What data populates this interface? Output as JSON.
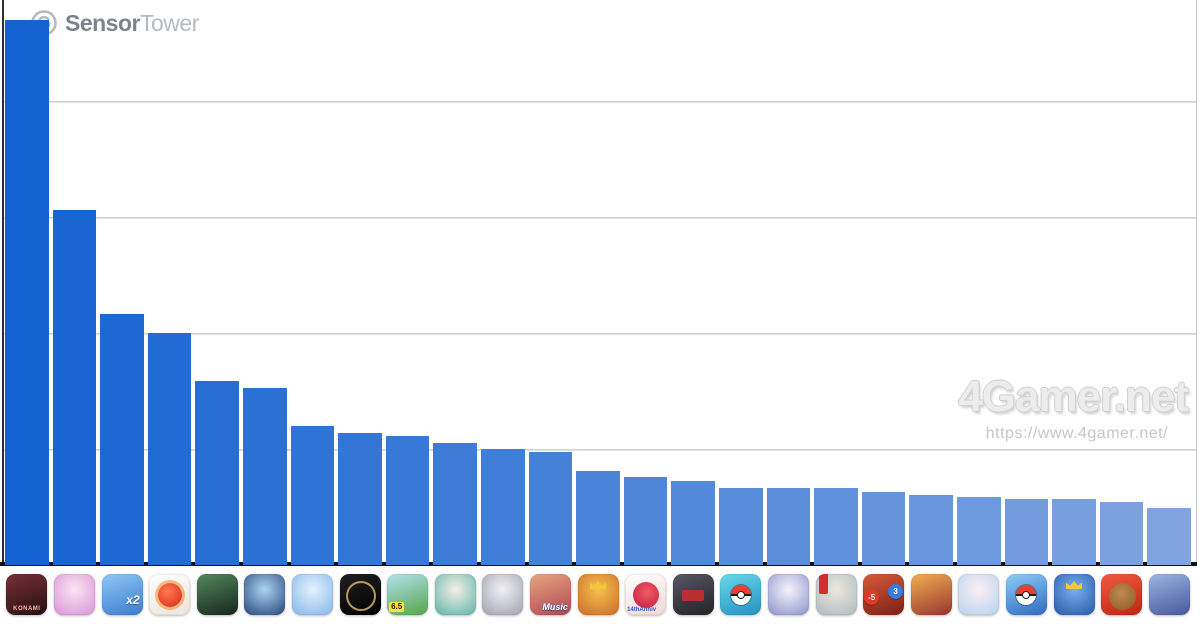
{
  "brand": {
    "name_bold": "Sensor",
    "name_light": "Tower"
  },
  "watermark": {
    "title": "4Gamer.net",
    "url": "https://www.4gamer.net/"
  },
  "chart_data": {
    "type": "bar",
    "title": "",
    "legend": "none",
    "x_axis": {
      "tick_style": "app-icons",
      "labels_visible": false
    },
    "y_axis": {
      "labels_visible": false,
      "gridlines": 4,
      "gridline_unit": 1,
      "ylim": [
        0,
        4.87
      ]
    },
    "bar_color_start": "#1563d2",
    "bar_color_end": "#7fa4e0",
    "categories": [
      "baseball-konami",
      "uma-musume",
      "puzzle-x2",
      "monster-strike",
      "efootball",
      "frozen-city",
      "fantasy-blue",
      "twisted-wonderland",
      "dq-walk",
      "teal-heroine",
      "pale-girl",
      "idol-music",
      "royal-king",
      "puzzle-and-dragons",
      "nobunaga-hadou",
      "pokemon-tcg-pocket",
      "genshin-paimon",
      "anniv-girl",
      "war-gates",
      "pirate-crew",
      "star-rail",
      "pokemon-go",
      "clash-king",
      "toon-bear",
      "mecha-collage"
    ],
    "values": [
      4.7,
      3.06,
      2.16,
      2.0,
      1.59,
      1.53,
      1.2,
      1.14,
      1.11,
      1.05,
      1.0,
      0.97,
      0.81,
      0.76,
      0.72,
      0.66,
      0.66,
      0.66,
      0.63,
      0.6,
      0.59,
      0.57,
      0.57,
      0.54,
      0.49
    ]
  },
  "icon_row": {
    "icons": [
      {
        "name": "baseball-konami",
        "grad": "linear",
        "colors": [
          "#7a3034",
          "#241013"
        ],
        "label": "KONAMI",
        "label_class": "konami"
      },
      {
        "name": "uma-musume",
        "grad": "radial",
        "colors": [
          "#fce4f2",
          "#d892d8"
        ]
      },
      {
        "name": "puzzle-x2",
        "grad": "linear",
        "colors": [
          "#90c8f4",
          "#3b7cd0"
        ],
        "label": "x2",
        "label_class": "x2"
      },
      {
        "name": "monster-strike",
        "grad": "linear",
        "colors": [
          "#ffffff",
          "#ece4da"
        ],
        "overlay": "blob"
      },
      {
        "name": "efootball",
        "grad": "linear",
        "colors": [
          "#55885c",
          "#14261c"
        ]
      },
      {
        "name": "frozen-city",
        "grad": "radial",
        "colors": [
          "#aad4f2",
          "#274479"
        ]
      },
      {
        "name": "fantasy-blue",
        "grad": "radial",
        "colors": [
          "#e2f2fc",
          "#84b6ea"
        ]
      },
      {
        "name": "twisted-wonderland",
        "grad": "linear",
        "colors": [
          "#202022",
          "#000000"
        ],
        "overlay": "ring"
      },
      {
        "name": "dq-walk",
        "grad": "linear",
        "colors": [
          "#b2e2f0",
          "#56a448"
        ],
        "label": "6.5",
        "label_class": "banner"
      },
      {
        "name": "teal-heroine",
        "grad": "radial",
        "colors": [
          "#f6f0e6",
          "#5ab2a8"
        ]
      },
      {
        "name": "pale-girl",
        "grad": "radial",
        "colors": [
          "#f0f0f4",
          "#a0a0ae"
        ]
      },
      {
        "name": "idol-music",
        "grad": "linear",
        "colors": [
          "#e8a482",
          "#b04850"
        ],
        "label": "Music",
        "label_class": "music"
      },
      {
        "name": "royal-king",
        "grad": "radial",
        "colors": [
          "#f6c050",
          "#c86c28"
        ],
        "overlay": "crown"
      },
      {
        "name": "puzzle-and-dragons",
        "grad": "linear",
        "colors": [
          "#ffffff",
          "#f2d6d6"
        ],
        "overlay": "blob-red",
        "label": "14thAnniv",
        "label_class": "pad"
      },
      {
        "name": "nobunaga-hadou",
        "grad": "linear",
        "colors": [
          "#585866",
          "#222228"
        ],
        "overlay": "seal"
      },
      {
        "name": "pokemon-tcg-pocket",
        "grad": "linear",
        "colors": [
          "#6ad8ea",
          "#2492c0"
        ],
        "overlay": "pokeball"
      },
      {
        "name": "genshin-paimon",
        "grad": "radial",
        "colors": [
          "#f6f4fc",
          "#8a90ca"
        ]
      },
      {
        "name": "anniv-girl",
        "grad": "radial",
        "colors": [
          "#ece8de",
          "#aeb8c0"
        ],
        "overlay": "banner-red"
      },
      {
        "name": "war-gates",
        "grad": "linear",
        "colors": [
          "#d85a3c",
          "#7c2014"
        ],
        "balls": [
          {
            "text": "-5",
            "color": "#e23826"
          },
          {
            "text": "3",
            "color": "#3a7ad8"
          }
        ]
      },
      {
        "name": "pirate-crew",
        "grad": "linear",
        "colors": [
          "#f0b050",
          "#983430"
        ]
      },
      {
        "name": "star-rail",
        "grad": "radial",
        "colors": [
          "#fdeef2",
          "#b4d2f0"
        ]
      },
      {
        "name": "pokemon-go",
        "grad": "linear",
        "colors": [
          "#8ecdf5",
          "#2e6ac2"
        ],
        "overlay": "pokeball"
      },
      {
        "name": "clash-king",
        "grad": "radial",
        "colors": [
          "#76b0ee",
          "#2a56a6"
        ],
        "overlay": "crown"
      },
      {
        "name": "toon-bear",
        "grad": "linear",
        "colors": [
          "#f25a40",
          "#c02414"
        ],
        "overlay": "blob-brown"
      },
      {
        "name": "mecha-collage",
        "grad": "linear",
        "colors": [
          "#9cb6e2",
          "#46589a"
        ]
      }
    ]
  }
}
